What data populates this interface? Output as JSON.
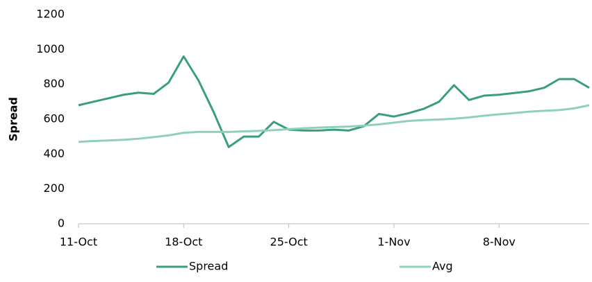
{
  "chart_data": {
    "type": "line",
    "y_label": "Spread",
    "categories": [
      "11-Oct",
      null,
      null,
      null,
      null,
      null,
      null,
      "18-Oct",
      null,
      null,
      null,
      null,
      null,
      null,
      "25-Oct",
      null,
      null,
      null,
      null,
      null,
      null,
      "1-Nov",
      null,
      null,
      null,
      null,
      null,
      null,
      "8-Nov",
      null,
      null,
      null,
      null,
      null,
      null
    ],
    "series": [
      {
        "name": "Spread",
        "color": "#3a9e7e",
        "values": [
          680,
          700,
          720,
          740,
          752,
          745,
          810,
          960,
          820,
          640,
          440,
          500,
          500,
          585,
          540,
          535,
          535,
          540,
          535,
          560,
          630,
          615,
          635,
          660,
          700,
          795,
          710,
          735,
          740,
          750,
          760,
          780,
          830,
          830,
          780
        ]
      },
      {
        "name": "Avg",
        "color": "#8fd1b8",
        "values": [
          470,
          475,
          478,
          482,
          488,
          497,
          507,
          522,
          527,
          527,
          527,
          530,
          533,
          537,
          543,
          548,
          552,
          555,
          558,
          563,
          570,
          580,
          590,
          595,
          598,
          603,
          610,
          620,
          628,
          635,
          643,
          648,
          652,
          662,
          680
        ]
      }
    ],
    "ylim": [
      0,
      1200
    ],
    "yticks": [
      0,
      200,
      400,
      600,
      800,
      1000,
      1200
    ],
    "grid": false,
    "legend": "bottom"
  }
}
